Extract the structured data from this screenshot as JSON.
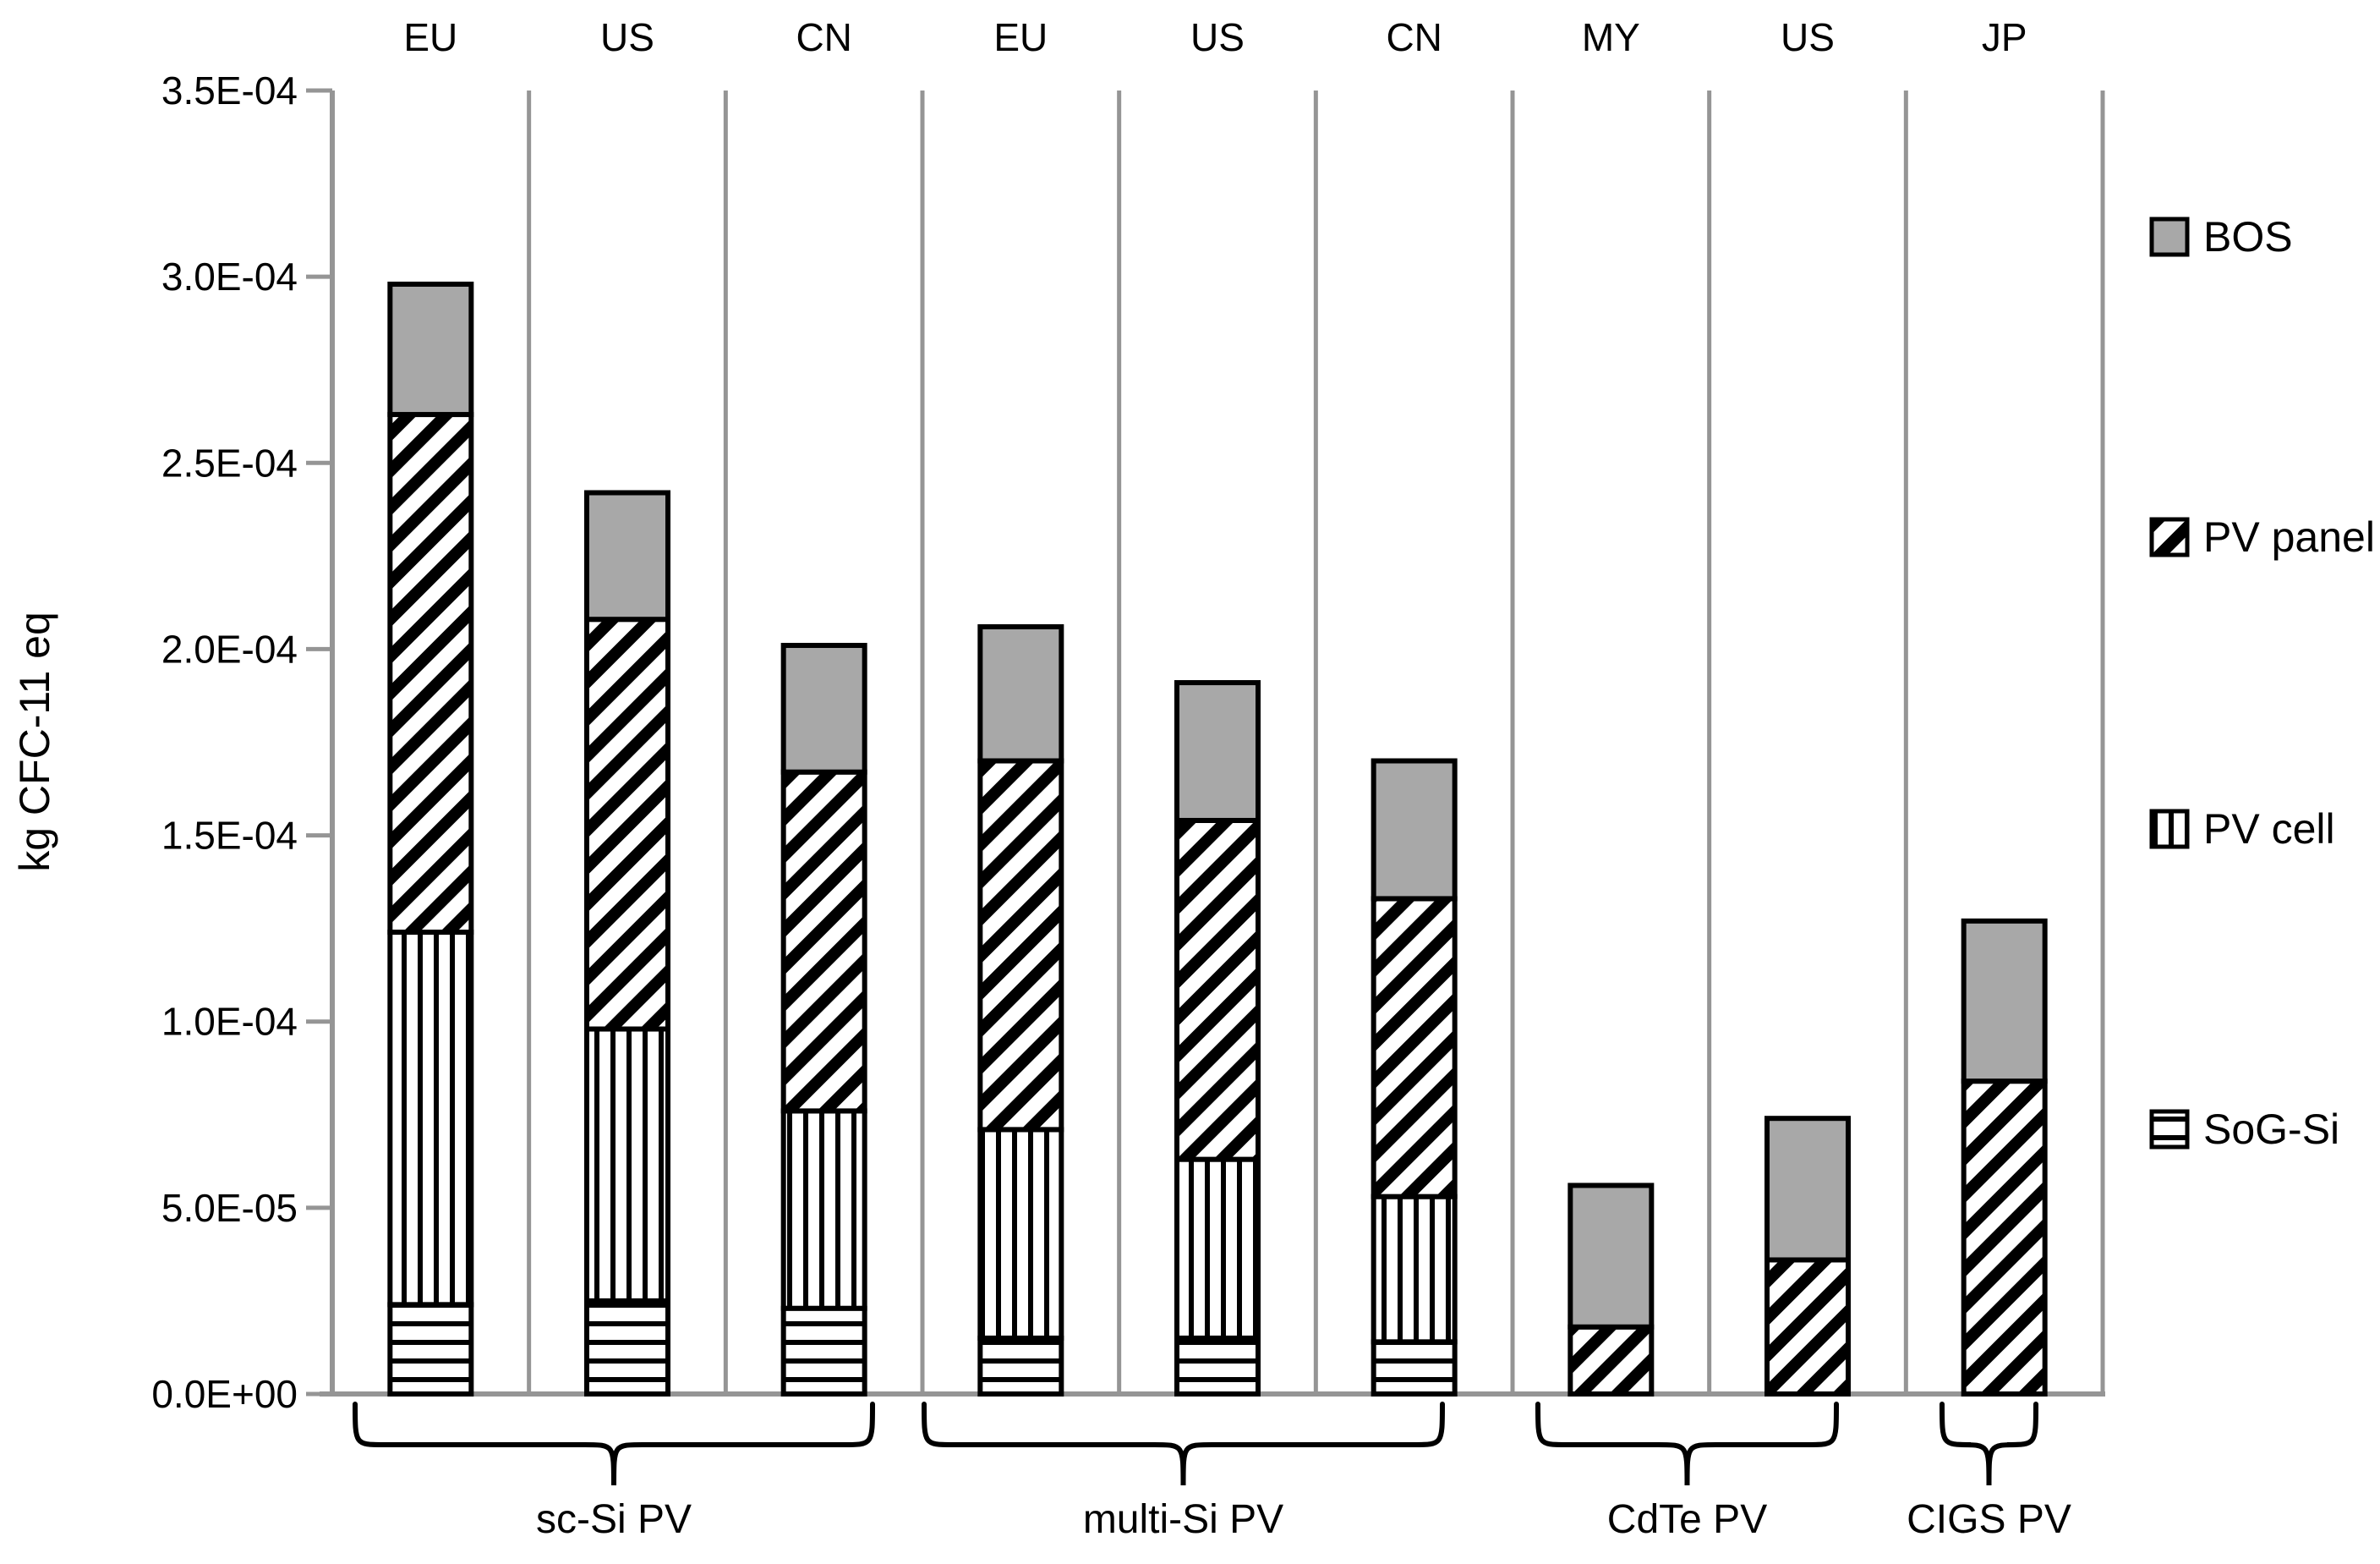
{
  "chart_data": {
    "type": "bar",
    "stacked": true,
    "title": "",
    "ylabel": "kg CFC-11 eq",
    "xlabel": "",
    "unit": "kg CFC-11 eq",
    "ylim": [
      0,
      0.00035
    ],
    "grid": false,
    "legend_position": "right",
    "categories": [
      "EU",
      "US",
      "CN",
      "EU",
      "US",
      "CN",
      "MY",
      "US",
      "JP"
    ],
    "y_ticks_top_down": [
      "3.5E-04",
      "3.0E-04",
      "2.5E-04",
      "2.0E-04",
      "1.5E-04",
      "1.0E-04",
      "5.0E-05",
      "0.0E+00"
    ],
    "y_tick_values_top_down": [
      0.00035,
      0.0003,
      0.00025,
      0.0002,
      0.00015,
      0.0001,
      5e-05,
      0.0
    ],
    "series": [
      {
        "name": "SoG-Si",
        "pattern": "horizontal-lines",
        "values": [
          2.4e-05,
          2.5e-05,
          2.3e-05,
          1.5e-05,
          1.5e-05,
          1.4e-05,
          0,
          0,
          0
        ]
      },
      {
        "name": "PV cell",
        "pattern": "vertical-lines",
        "values": [
          0.0001,
          7.3e-05,
          5.3e-05,
          5.6e-05,
          4.8e-05,
          3.9e-05,
          0,
          0,
          0
        ]
      },
      {
        "name": "PV panel",
        "pattern": "diagonal-hatch",
        "values": [
          0.000139,
          0.00011,
          9.1e-05,
          9.9e-05,
          9.1e-05,
          8e-05,
          1.8e-05,
          3.6e-05,
          8.4e-05
        ]
      },
      {
        "name": "BOS",
        "pattern": "solid-gray",
        "values": [
          3.5e-05,
          3.4e-05,
          3.4e-05,
          3.6e-05,
          3.7e-05,
          3.7e-05,
          3.8e-05,
          3.8e-05,
          4.3e-05
        ]
      }
    ],
    "bar_totals": [
      0.000298,
      0.000242,
      0.000201,
      0.000206,
      0.000191,
      0.00017,
      5.6e-05,
      7.4e-05,
      0.000127
    ],
    "legend_entries_top_down": [
      "BOS",
      "PV panel",
      "PV cell",
      "SoG-Si"
    ],
    "groups": [
      {
        "label": "sc-Si PV",
        "bar_indexes": [
          0,
          1,
          2
        ]
      },
      {
        "label": "multi-Si PV",
        "bar_indexes": [
          3,
          4,
          5
        ]
      },
      {
        "label": "CdTe PV",
        "bar_indexes": [
          6,
          7
        ]
      },
      {
        "label": "CIGS PV",
        "bar_indexes": [
          8
        ]
      }
    ]
  },
  "colors": {
    "bos_gray": "#A8A8A8",
    "axis_gray": "#959595",
    "pattern_black": "#000000",
    "background": "#FFFFFF"
  }
}
